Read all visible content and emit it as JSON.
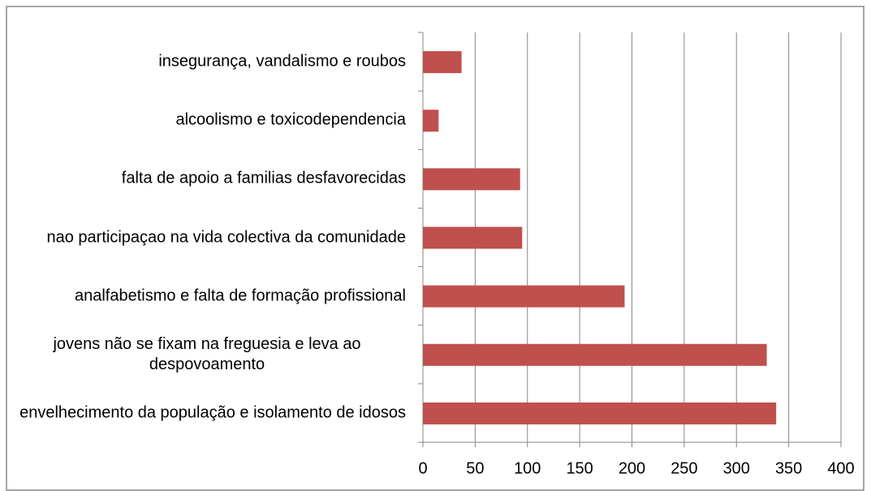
{
  "chart_data": {
    "type": "bar",
    "orientation": "horizontal",
    "categories": [
      "insegurança, vandalismo e roubos",
      "alcoolismo e toxicodependencia",
      "falta de apoio a familias desfavorecidas",
      "nao participaçao na vida colectiva da comunidade",
      "analfabetismo e falta de formação profissional",
      "jovens não se fixam na freguesia e leva ao despovoamento",
      "envelhecimento da população e isolamento de idosos"
    ],
    "values": [
      37,
      15,
      93,
      95,
      193,
      329,
      338
    ],
    "color": "#c0504d",
    "xlim": [
      0,
      400
    ],
    "xticks": [
      0,
      50,
      100,
      150,
      200,
      250,
      300,
      350,
      400
    ],
    "grid": true
  }
}
